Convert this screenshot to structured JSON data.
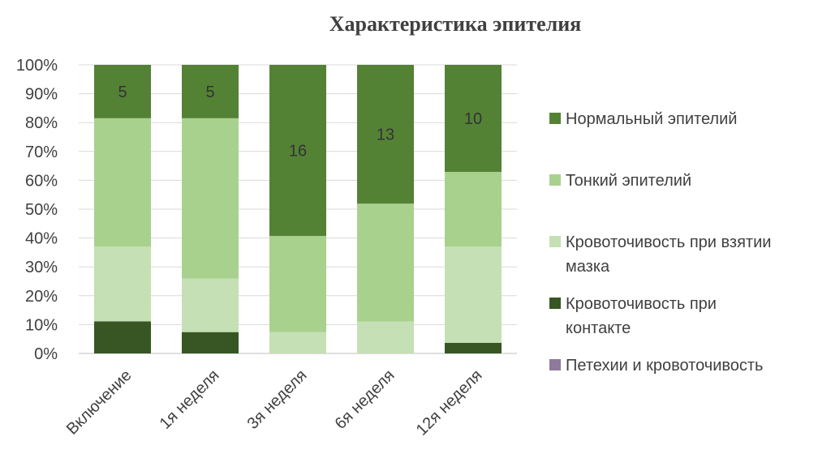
{
  "chart_data": {
    "type": "bar",
    "stacked": "percent",
    "title": "Характеристика эпителия",
    "categories": [
      "Включение",
      "1я неделя",
      "3я неделя",
      "6я неделя",
      "12я неделя"
    ],
    "y_ticks": [
      "0%",
      "10%",
      "20%",
      "30%",
      "40%",
      "50%",
      "60%",
      "70%",
      "80%",
      "90%",
      "100%"
    ],
    "ylim": [
      0,
      100
    ],
    "grid": true,
    "legend_position": "right",
    "series": [
      {
        "name": "Петехии и кровоточивость",
        "color": "#8e7a9c",
        "values": [
          0,
          0,
          0,
          0,
          0
        ],
        "labels": [
          "",
          "",
          "",
          "",
          ""
        ]
      },
      {
        "name": "Кровоточивость при контакте",
        "color": "#375623",
        "values": [
          11.1,
          7.4,
          0,
          0,
          3.7
        ],
        "labels": [
          "",
          "",
          "",
          "",
          ""
        ]
      },
      {
        "name": "Кровоточивость при взятии мазка",
        "color": "#c5e0b4",
        "values": [
          25.9,
          18.5,
          7.4,
          11.1,
          33.3
        ],
        "labels": [
          "",
          "",
          "",
          "",
          ""
        ]
      },
      {
        "name": "Тонкий эпителий",
        "color": "#a9d18e",
        "values": [
          44.5,
          55.6,
          33.3,
          40.8,
          25.9
        ],
        "labels": [
          "",
          "",
          "",
          "",
          ""
        ]
      },
      {
        "name": "Нормальный эпителий",
        "color": "#548235",
        "values": [
          18.5,
          18.5,
          59.3,
          48.1,
          37.1
        ],
        "labels": [
          "5",
          "5",
          "16",
          "13",
          "10"
        ]
      }
    ],
    "legend": [
      {
        "series_index": 4,
        "lines": [
          "Нормальный эпителий"
        ]
      },
      {
        "series_index": 3,
        "lines": [
          "Тонкий эпителий"
        ]
      },
      {
        "series_index": 2,
        "lines": [
          "Кровоточивость при взятии",
          "мазка"
        ]
      },
      {
        "series_index": 1,
        "lines": [
          "Кровоточивость при",
          "контакте"
        ]
      },
      {
        "series_index": 0,
        "lines": [
          "Петехии и кровоточивость"
        ]
      }
    ]
  }
}
